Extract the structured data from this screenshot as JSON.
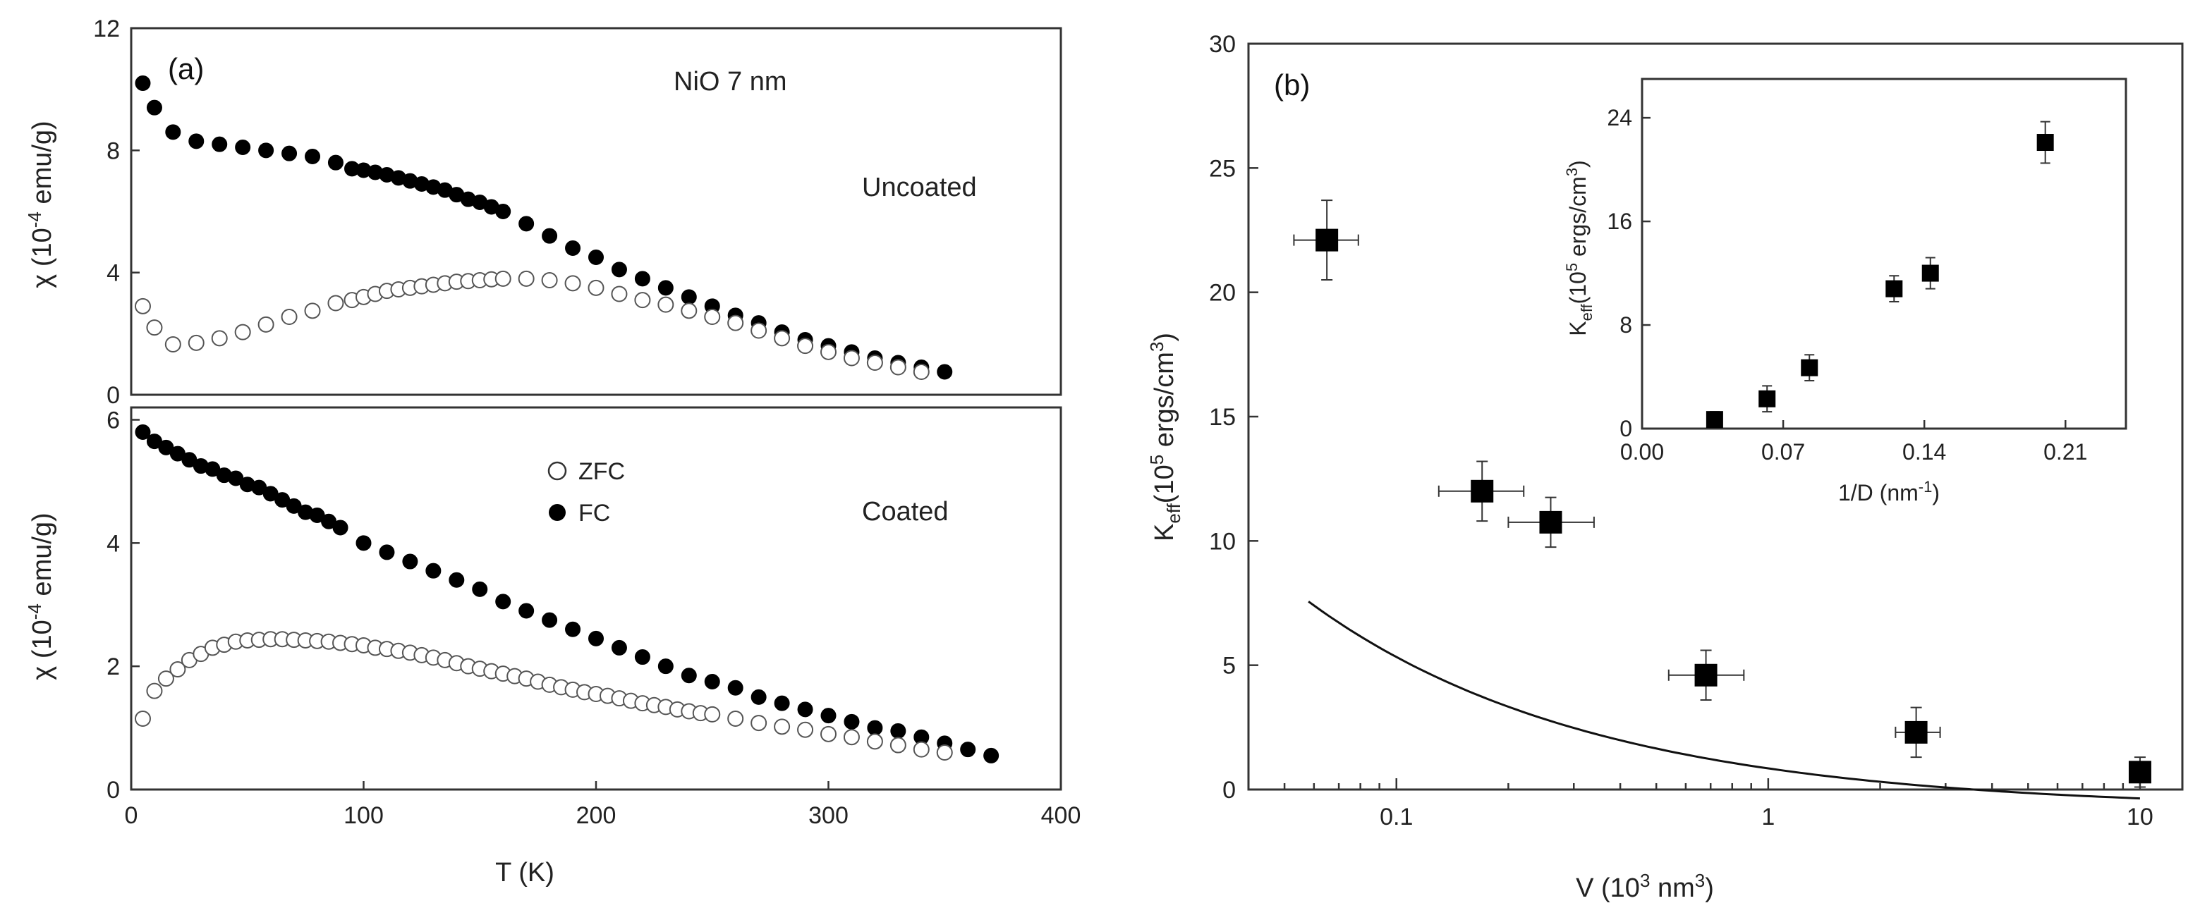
{
  "chart_data": [
    {
      "id": "a-top",
      "type": "scatter",
      "panel_label": "(a)",
      "annotation": "NiO 7 nm",
      "condition_label": "Uncoated",
      "ylabel": {
        "pre": "χ (10",
        "sup": "-4",
        "post": " emu/g)"
      },
      "xlabel": "",
      "xlim": [
        0,
        400
      ],
      "ylim": [
        0,
        12
      ],
      "xticks": [
        0,
        100,
        200,
        300,
        400
      ],
      "yticks": [
        0,
        4,
        8,
        12
      ],
      "ytick_labels": [
        "0",
        "4",
        "8",
        "12"
      ],
      "series": [
        {
          "name": "FC",
          "marker": "filled-circle",
          "x": [
            5,
            10,
            18,
            28,
            38,
            48,
            58,
            68,
            78,
            88,
            95,
            100,
            105,
            110,
            115,
            120,
            125,
            130,
            135,
            140,
            145,
            150,
            155,
            160,
            170,
            180,
            190,
            200,
            210,
            220,
            230,
            240,
            250,
            260,
            270,
            280,
            290,
            300,
            310,
            320,
            330,
            340,
            350
          ],
          "y": [
            10.2,
            9.4,
            8.6,
            8.3,
            8.2,
            8.1,
            8.0,
            7.9,
            7.8,
            7.6,
            7.4,
            7.35,
            7.28,
            7.2,
            7.1,
            7.0,
            6.9,
            6.8,
            6.7,
            6.55,
            6.4,
            6.3,
            6.15,
            6.0,
            5.6,
            5.2,
            4.8,
            4.5,
            4.1,
            3.8,
            3.5,
            3.2,
            2.9,
            2.6,
            2.35,
            2.05,
            1.8,
            1.6,
            1.4,
            1.2,
            1.05,
            0.9,
            0.75
          ]
        },
        {
          "name": "ZFC",
          "marker": "open-circle",
          "x": [
            5,
            10,
            18,
            28,
            38,
            48,
            58,
            68,
            78,
            88,
            95,
            100,
            105,
            110,
            115,
            120,
            125,
            130,
            135,
            140,
            145,
            150,
            155,
            160,
            170,
            180,
            190,
            200,
            210,
            220,
            230,
            240,
            250,
            260,
            270,
            280,
            290,
            300,
            310,
            320,
            330,
            340
          ],
          "y": [
            2.9,
            2.2,
            1.65,
            1.7,
            1.85,
            2.05,
            2.3,
            2.55,
            2.75,
            3.0,
            3.1,
            3.2,
            3.3,
            3.4,
            3.45,
            3.5,
            3.55,
            3.6,
            3.65,
            3.7,
            3.72,
            3.75,
            3.78,
            3.8,
            3.8,
            3.75,
            3.65,
            3.5,
            3.3,
            3.1,
            2.95,
            2.75,
            2.55,
            2.35,
            2.1,
            1.85,
            1.6,
            1.4,
            1.2,
            1.05,
            0.9,
            0.75
          ]
        }
      ]
    },
    {
      "id": "a-bottom",
      "type": "scatter",
      "condition_label": "Coated",
      "ylabel": {
        "pre": "χ (10",
        "sup": "-4",
        "post": " emu/g)"
      },
      "xlabel": "T (K)",
      "xlim": [
        0,
        400
      ],
      "ylim": [
        0,
        6.2
      ],
      "xticks": [
        0,
        100,
        200,
        300,
        400
      ],
      "xtick_labels": [
        "0",
        "100",
        "200",
        "300",
        "400"
      ],
      "yticks": [
        0,
        2,
        4,
        6
      ],
      "ytick_labels": [
        "0",
        "2",
        "4",
        "6"
      ],
      "legend": [
        {
          "label": "ZFC",
          "marker": "open-circle"
        },
        {
          "label": "FC",
          "marker": "filled-circle"
        }
      ],
      "legend_position": "upper-center",
      "series": [
        {
          "name": "FC",
          "marker": "filled-circle",
          "x": [
            5,
            10,
            15,
            20,
            25,
            30,
            35,
            40,
            45,
            50,
            55,
            60,
            65,
            70,
            75,
            80,
            85,
            90,
            100,
            110,
            120,
            130,
            140,
            150,
            160,
            170,
            180,
            190,
            200,
            210,
            220,
            230,
            240,
            250,
            260,
            270,
            280,
            290,
            300,
            310,
            320,
            330,
            340,
            350,
            360,
            370
          ],
          "y": [
            5.8,
            5.65,
            5.55,
            5.45,
            5.35,
            5.25,
            5.2,
            5.1,
            5.05,
            4.95,
            4.9,
            4.8,
            4.7,
            4.6,
            4.5,
            4.45,
            4.35,
            4.25,
            4.0,
            3.85,
            3.7,
            3.55,
            3.4,
            3.25,
            3.05,
            2.9,
            2.75,
            2.6,
            2.45,
            2.3,
            2.15,
            2.0,
            1.85,
            1.75,
            1.65,
            1.5,
            1.4,
            1.3,
            1.2,
            1.1,
            1.0,
            0.95,
            0.85,
            0.75,
            0.65,
            0.55
          ]
        },
        {
          "name": "ZFC",
          "marker": "open-circle",
          "x": [
            5,
            10,
            15,
            20,
            25,
            30,
            35,
            40,
            45,
            50,
            55,
            60,
            65,
            70,
            75,
            80,
            85,
            90,
            95,
            100,
            105,
            110,
            115,
            120,
            125,
            130,
            135,
            140,
            145,
            150,
            155,
            160,
            165,
            170,
            175,
            180,
            185,
            190,
            195,
            200,
            205,
            210,
            215,
            220,
            225,
            230,
            235,
            240,
            245,
            250,
            260,
            270,
            280,
            290,
            300,
            310,
            320,
            330,
            340,
            350
          ],
          "y": [
            1.15,
            1.6,
            1.8,
            1.95,
            2.1,
            2.2,
            2.3,
            2.35,
            2.4,
            2.42,
            2.43,
            2.44,
            2.44,
            2.43,
            2.42,
            2.41,
            2.4,
            2.38,
            2.36,
            2.34,
            2.3,
            2.28,
            2.25,
            2.22,
            2.18,
            2.14,
            2.1,
            2.05,
            2.0,
            1.96,
            1.92,
            1.88,
            1.84,
            1.8,
            1.75,
            1.7,
            1.66,
            1.62,
            1.58,
            1.55,
            1.52,
            1.48,
            1.44,
            1.4,
            1.37,
            1.34,
            1.3,
            1.27,
            1.24,
            1.22,
            1.15,
            1.08,
            1.02,
            0.97,
            0.9,
            0.85,
            0.78,
            0.72,
            0.65,
            0.6
          ]
        }
      ]
    },
    {
      "id": "b",
      "type": "scatter",
      "panel_label": "(b)",
      "xscale": "log",
      "xlim": [
        0.04,
        13
      ],
      "ylim": [
        0,
        30
      ],
      "xticks": [
        0.1,
        1,
        10
      ],
      "xtick_labels": [
        "0.1",
        "1",
        "10"
      ],
      "yticks": [
        0,
        5,
        10,
        15,
        20,
        25,
        30
      ],
      "ytick_labels": [
        "0",
        "5",
        "10",
        "15",
        "20",
        "25",
        "30"
      ],
      "xlabel": {
        "pre": "V (10",
        "sup": "3",
        "post": " nm",
        "sup2": "3",
        "end": ")"
      },
      "ylabel": {
        "pre": "K",
        "sub": "eff",
        "mid": "(10",
        "sup": "5",
        "post": " ergs/cm",
        "sup2": "3",
        "end": ")"
      },
      "points": [
        {
          "x": 0.065,
          "y": 22.1,
          "xerr": [
            0.053,
            0.079
          ],
          "yerr": 1.6
        },
        {
          "x": 0.17,
          "y": 12.0,
          "xerr": [
            0.13,
            0.22
          ],
          "yerr": 1.2
        },
        {
          "x": 0.26,
          "y": 10.75,
          "xerr": [
            0.2,
            0.34
          ],
          "yerr": 1.0
        },
        {
          "x": 0.68,
          "y": 4.6,
          "xerr": [
            0.54,
            0.86
          ],
          "yerr": 1.0
        },
        {
          "x": 2.5,
          "y": 2.3,
          "xerr": [
            2.2,
            2.9
          ],
          "yerr": 1.0
        },
        {
          "x": 10.0,
          "y": 0.7,
          "xerr": [
            9.5,
            10.5
          ],
          "yerr": 0.6
        }
      ],
      "fit_curve": {
        "x_start": 0.058,
        "x_end": 10,
        "form": "K = 1.65 * V^(-0.57) - 0.8"
      },
      "inset": {
        "type": "scatter",
        "xlim": [
          0,
          0.24
        ],
        "ylim": [
          0,
          27
        ],
        "xticks": [
          0.0,
          0.07,
          0.14,
          0.21
        ],
        "xtick_labels": [
          "0.00",
          "0.07",
          "0.14",
          "0.21"
        ],
        "yticks": [
          0,
          8,
          16,
          24
        ],
        "ytick_labels": [
          "0",
          "8",
          "16",
          "24"
        ],
        "xlabel": {
          "pre": "1/D (nm",
          "sup": "-1",
          "end": ")"
        },
        "ylabel": {
          "pre": "K",
          "sub": "eff",
          "mid": "(10",
          "sup": "5",
          "post": " ergs/cm",
          "sup2": "3",
          "end": ")"
        },
        "points": [
          {
            "x": 0.036,
            "y": 0.7,
            "yerr": 0.6
          },
          {
            "x": 0.062,
            "y": 2.3,
            "yerr": 1.0
          },
          {
            "x": 0.083,
            "y": 4.7,
            "yerr": 1.0
          },
          {
            "x": 0.125,
            "y": 10.8,
            "yerr": 1.0
          },
          {
            "x": 0.143,
            "y": 12.0,
            "yerr": 1.2
          },
          {
            "x": 0.2,
            "y": 22.1,
            "yerr": 1.6
          }
        ]
      }
    }
  ]
}
